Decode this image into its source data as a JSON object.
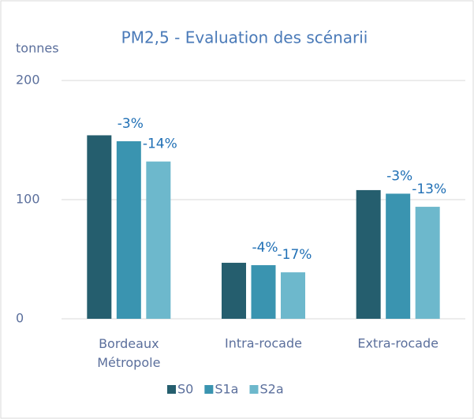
{
  "chart_data": {
    "type": "bar",
    "title": "PM2,5 - Evaluation des scénarii",
    "y_label": "tonnes",
    "categories": [
      "Bordeaux Métropole",
      "Intra-rocade",
      "Extra-rocade"
    ],
    "series": [
      {
        "name": "S0",
        "color": "#255e6e",
        "values": [
          154,
          47,
          108
        ]
      },
      {
        "name": "S1a",
        "color": "#3a94b0",
        "values": [
          149,
          45,
          105
        ],
        "change_labels": [
          "-3%",
          "-4%",
          "-3%"
        ]
      },
      {
        "name": "S2a",
        "color": "#6db8cc",
        "values": [
          132,
          39,
          94
        ],
        "change_labels": [
          "-14%",
          "-17%",
          "-13%"
        ]
      }
    ],
    "ylim": [
      0,
      200
    ],
    "yticks": [
      0,
      100,
      200
    ],
    "grid": true,
    "legend": "bottom"
  }
}
